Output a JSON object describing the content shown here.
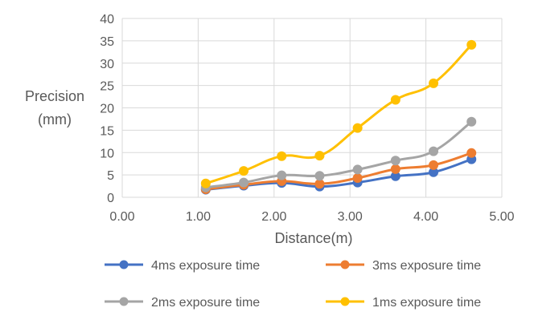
{
  "chart_data": {
    "type": "scatter",
    "xlabel": "Distance(m)",
    "ylabel_lines": [
      "Precision",
      "(mm)"
    ],
    "xlim": [
      0,
      5
    ],
    "ylim": [
      0,
      40
    ],
    "xticks": [
      0,
      1,
      2,
      3,
      4,
      5
    ],
    "xtick_labels": [
      "0.00",
      "1.00",
      "2.00",
      "3.00",
      "4.00",
      "5.00"
    ],
    "yticks": [
      0,
      5,
      10,
      15,
      20,
      25,
      30,
      35,
      40
    ],
    "ytick_labels": [
      "0",
      "5",
      "10",
      "15",
      "20",
      "25",
      "30",
      "35",
      "40"
    ],
    "grid": true,
    "legend_position": "bottom",
    "x": [
      1.1,
      1.6,
      2.1,
      2.6,
      3.1,
      3.6,
      4.1,
      4.6
    ],
    "series": [
      {
        "name": "4ms exposure time",
        "color": "#4472C4",
        "values": [
          1.7,
          2.6,
          3.2,
          2.4,
          3.3,
          4.7,
          5.6,
          8.5
        ]
      },
      {
        "name": "3ms exposure time",
        "color": "#ED7D31",
        "values": [
          1.8,
          2.8,
          3.6,
          3.0,
          4.3,
          6.3,
          7.2,
          9.9
        ]
      },
      {
        "name": "2ms exposure time",
        "color": "#A5A5A5",
        "values": [
          2.2,
          3.3,
          4.9,
          4.8,
          6.2,
          8.2,
          10.3,
          16.9
        ]
      },
      {
        "name": "1ms exposure time",
        "color": "#FFC000",
        "values": [
          3.1,
          5.9,
          9.2,
          9.3,
          15.5,
          21.8,
          25.5,
          34.1
        ]
      }
    ]
  }
}
